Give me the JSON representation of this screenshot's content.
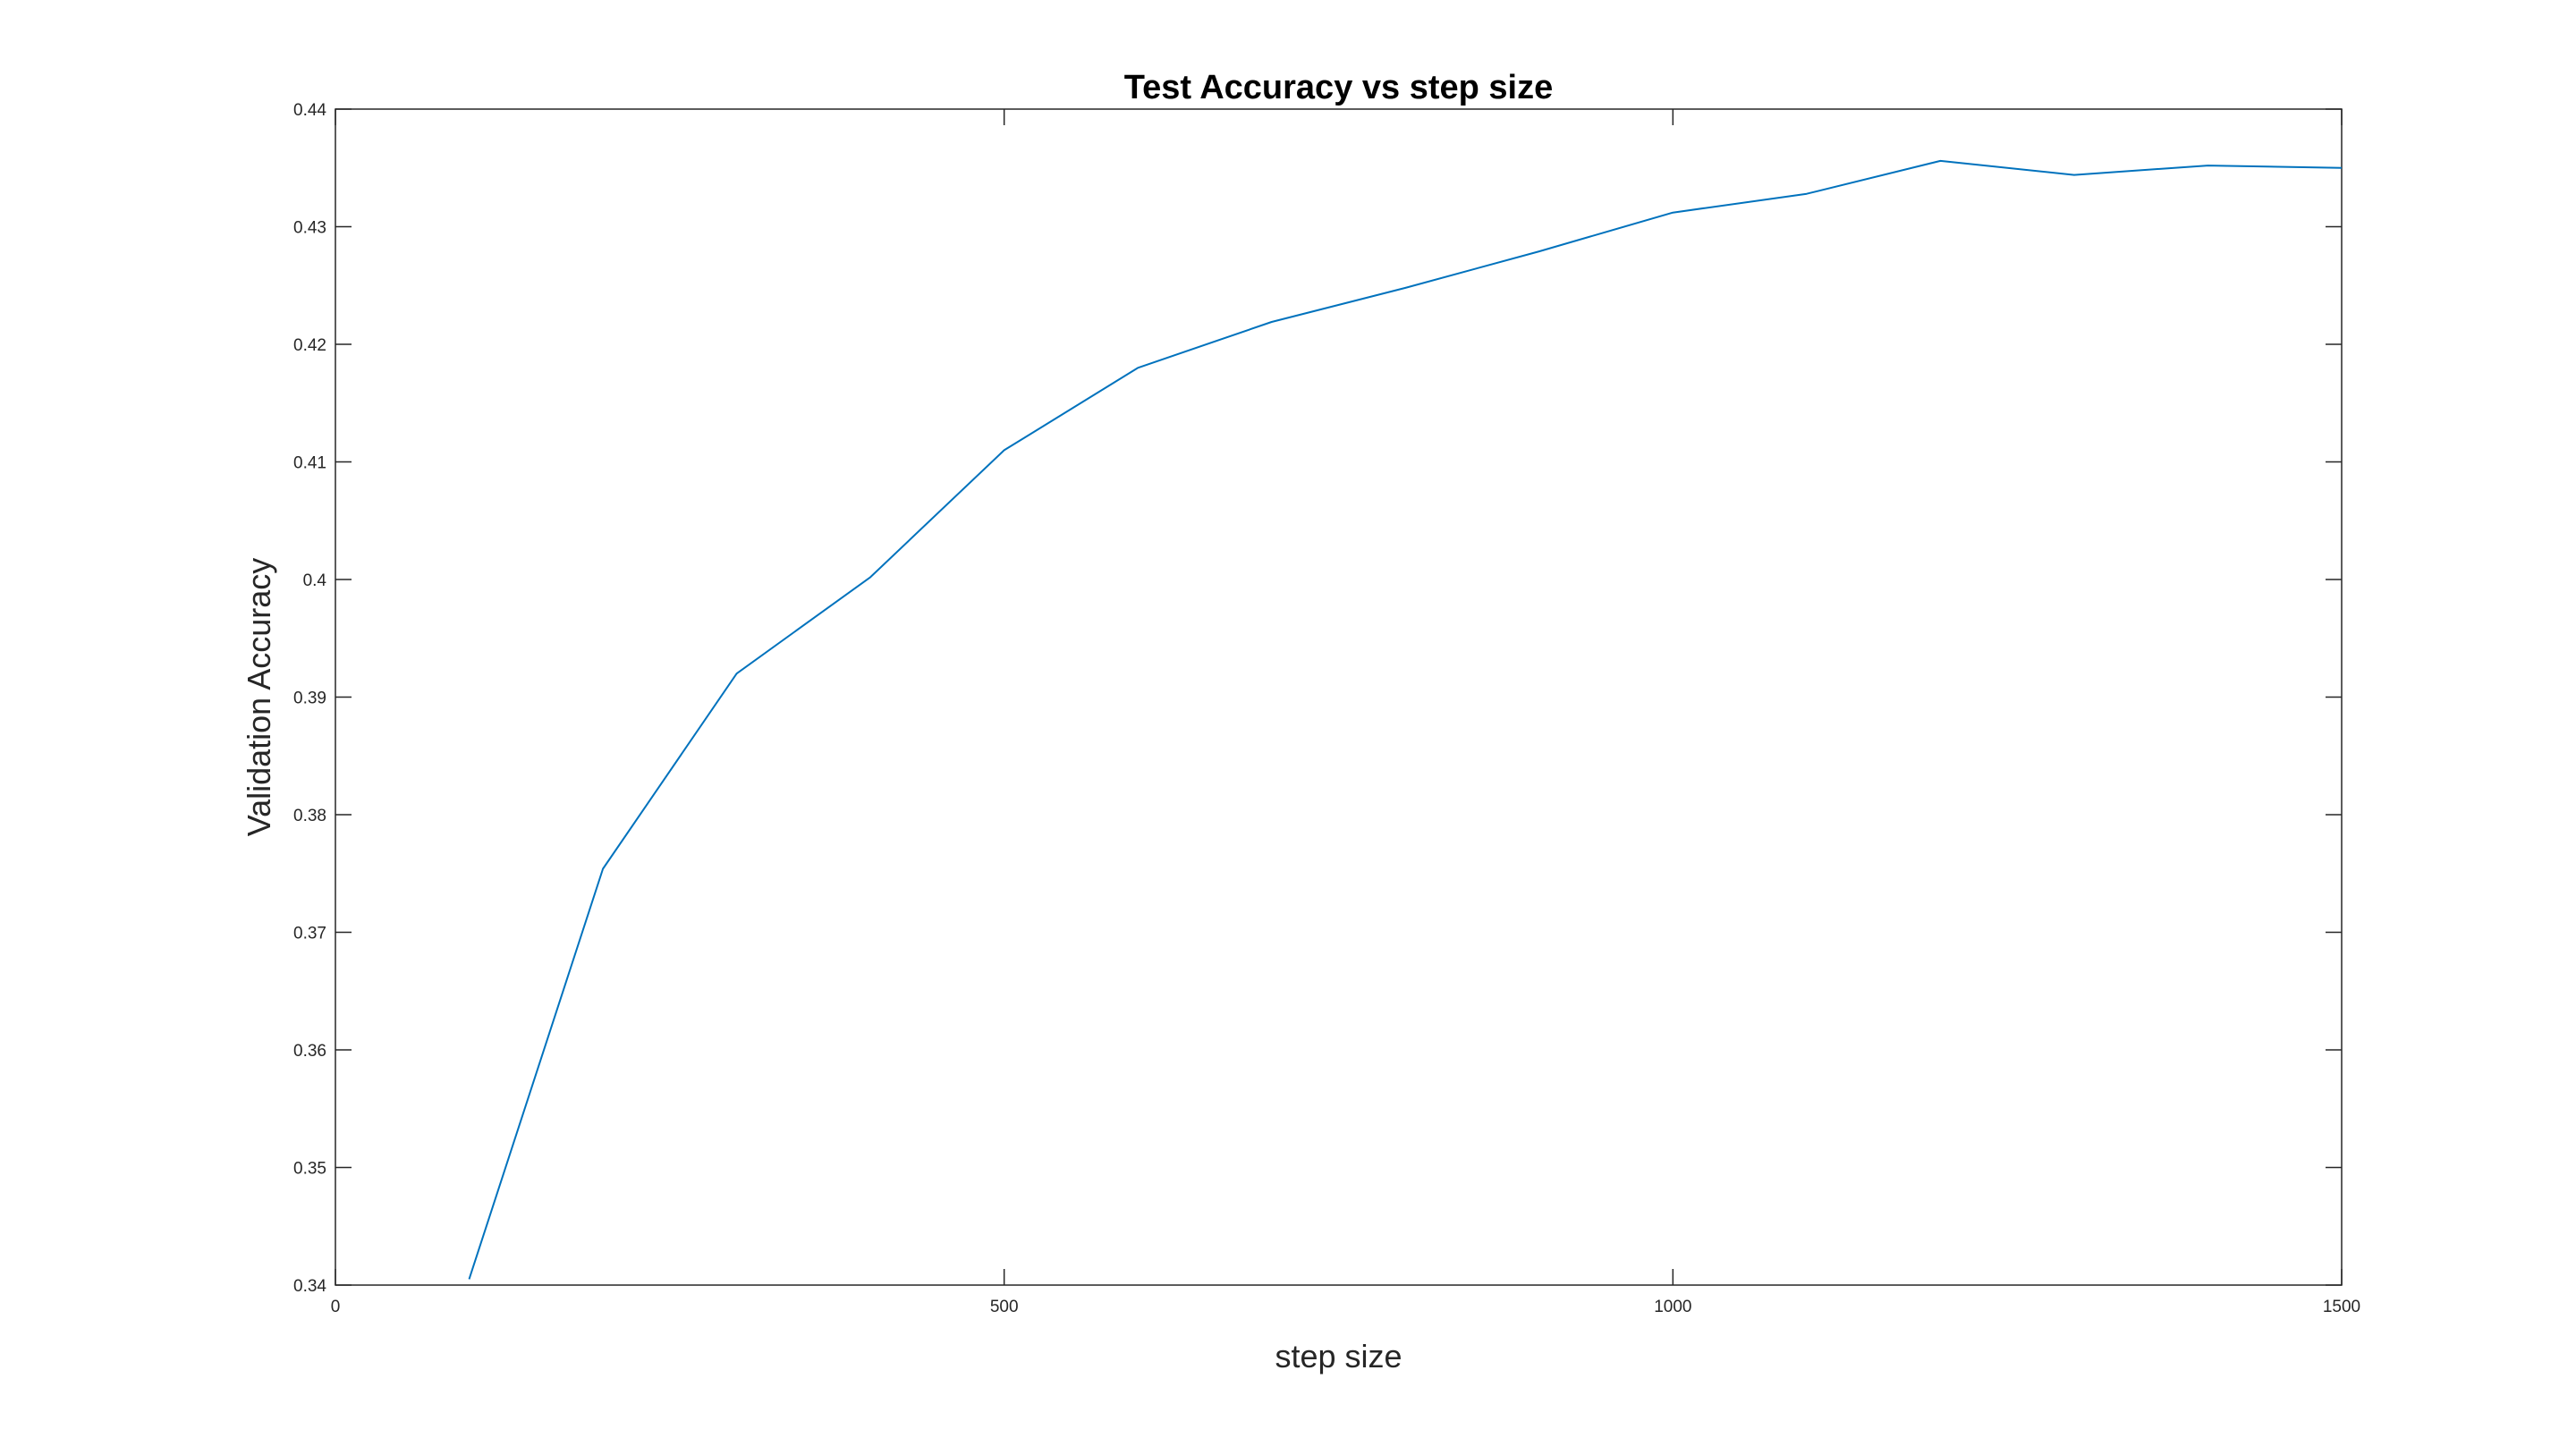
{
  "chart_data": {
    "type": "line",
    "title": "Test Accuracy vs step size",
    "xlabel": "step size",
    "ylabel": "Validation Accuracy",
    "xlim": [
      0,
      1500
    ],
    "ylim": [
      0.34,
      0.44
    ],
    "xticks": [
      0,
      500,
      1000,
      1500
    ],
    "xtick_labels": [
      "0",
      "500",
      "1000",
      "1500"
    ],
    "yticks": [
      0.34,
      0.35,
      0.36,
      0.37,
      0.38,
      0.39,
      0.4,
      0.41,
      0.42,
      0.43,
      0.44
    ],
    "ytick_labels": [
      "0.34",
      "0.35",
      "0.36",
      "0.37",
      "0.38",
      "0.39",
      "0.4",
      "0.41",
      "0.42",
      "0.43",
      "0.44"
    ],
    "grid": false,
    "series": [
      {
        "color": "#0072BD",
        "x": [
          100,
          200,
          300,
          400,
          500,
          600,
          700,
          800,
          900,
          1000,
          1100,
          1200,
          1300,
          1400,
          1500
        ],
        "y": [
          0.3405,
          0.3754,
          0.392,
          0.4002,
          0.411,
          0.418,
          0.4219,
          0.4248,
          0.4279,
          0.4312,
          0.4328,
          0.4356,
          0.4344,
          0.4352,
          0.435
        ]
      }
    ]
  }
}
